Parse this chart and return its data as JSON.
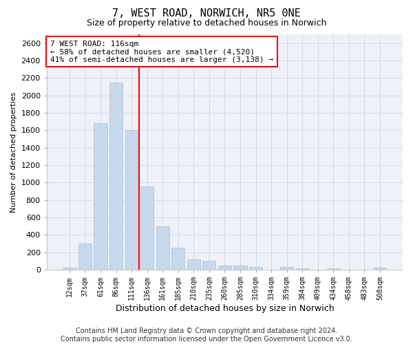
{
  "title": "7, WEST ROAD, NORWICH, NR5 0NE",
  "subtitle": "Size of property relative to detached houses in Norwich",
  "xlabel": "Distribution of detached houses by size in Norwich",
  "ylabel": "Number of detached properties",
  "footer_line1": "Contains HM Land Registry data © Crown copyright and database right 2024.",
  "footer_line2": "Contains public sector information licensed under the Open Government Licence v3.0.",
  "annotation_title": "7 WEST ROAD: 116sqm",
  "annotation_line1": "← 58% of detached houses are smaller (4,520)",
  "annotation_line2": "41% of semi-detached houses are larger (3,138) →",
  "bar_labels": [
    "12sqm",
    "37sqm",
    "61sqm",
    "86sqm",
    "111sqm",
    "136sqm",
    "161sqm",
    "185sqm",
    "210sqm",
    "235sqm",
    "260sqm",
    "285sqm",
    "310sqm",
    "334sqm",
    "359sqm",
    "384sqm",
    "409sqm",
    "434sqm",
    "458sqm",
    "483sqm",
    "508sqm"
  ],
  "bar_values": [
    25,
    300,
    1680,
    2150,
    1600,
    960,
    500,
    250,
    120,
    100,
    50,
    50,
    30,
    5,
    30,
    20,
    5,
    20,
    5,
    5,
    25
  ],
  "bar_color": "#c8d8ec",
  "bar_edgecolor": "#a8bcd4",
  "vline_color": "red",
  "ylim": [
    0,
    2700
  ],
  "yticks": [
    0,
    200,
    400,
    600,
    800,
    1000,
    1200,
    1400,
    1600,
    1800,
    2000,
    2200,
    2400,
    2600
  ],
  "grid_color": "#d0d8e8",
  "bg_color": "#eef2f8",
  "title_fontsize": 11,
  "subtitle_fontsize": 9,
  "xlabel_fontsize": 9,
  "ylabel_fontsize": 8,
  "tick_fontsize": 8,
  "xtick_fontsize": 7,
  "footer_fontsize": 7,
  "annotation_fontsize": 8
}
